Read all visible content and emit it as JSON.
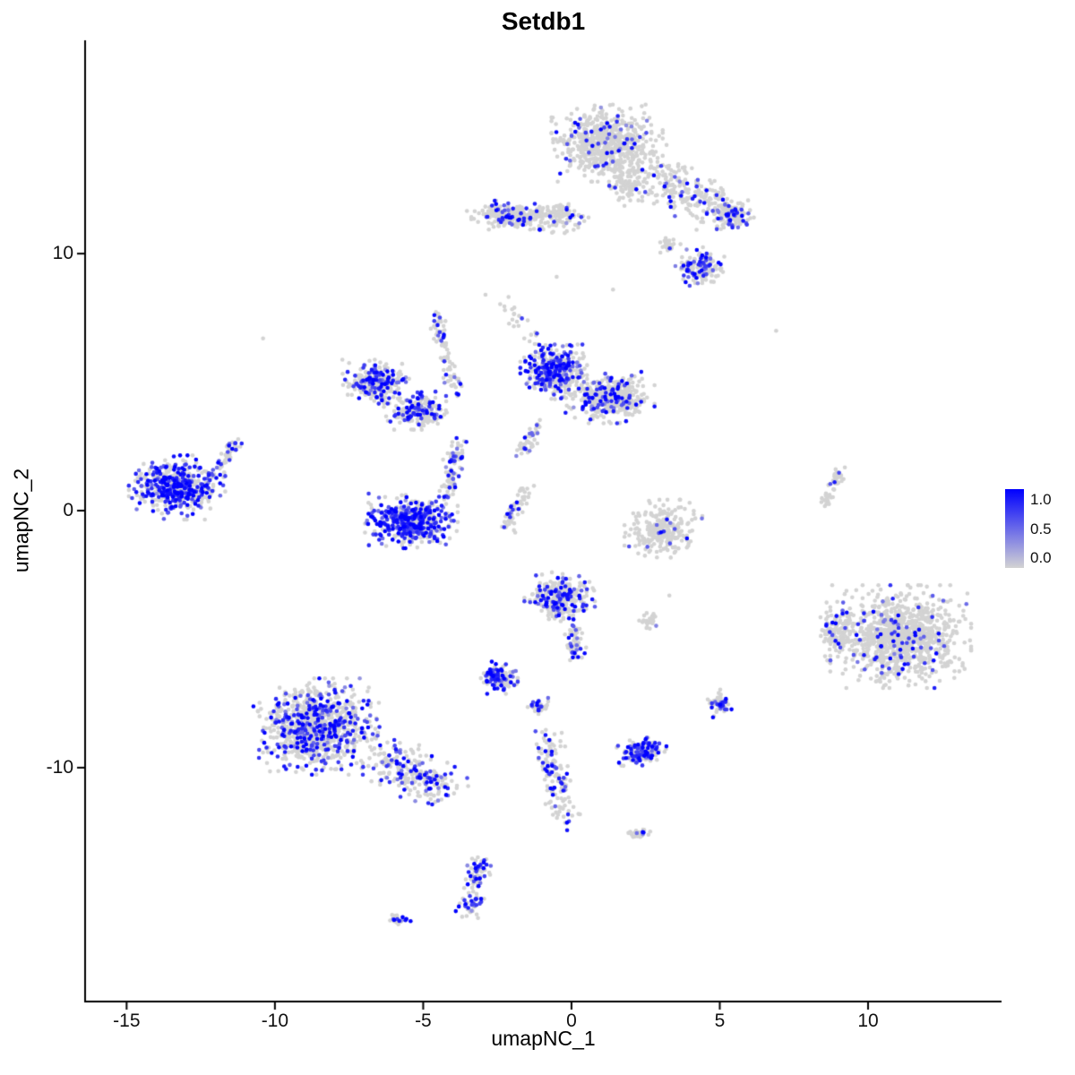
{
  "chart_data": {
    "type": "scatter",
    "title": "Setdb1",
    "xlabel": "umapNC_1",
    "ylabel": "umapNC_2",
    "xlim": [
      -16.4,
      14.5
    ],
    "ylim": [
      -19.1,
      18.3
    ],
    "x_ticks": [
      -15,
      -10,
      -5,
      0,
      5,
      10
    ],
    "y_ticks": [
      -10,
      0,
      10
    ],
    "grid": false,
    "background": "#ffffff",
    "axis_color": "#000000",
    "point_radius_px": 2.3,
    "color_low": "#D3D3D3",
    "color_high": "#0000FF",
    "legend": {
      "position": "right",
      "ticks": [
        "1.0",
        "0.5",
        "0.0"
      ],
      "tick_values": [
        1.0,
        0.5,
        0.0
      ]
    },
    "clusters": [
      {
        "name": "top-main",
        "shape": "blob",
        "cx": 1.2,
        "cy": 14.3,
        "rx": 1.5,
        "ry": 1.2,
        "n": 650,
        "expr": 0.1
      },
      {
        "name": "top-neck",
        "shape": "blob",
        "cx": 1.9,
        "cy": 12.7,
        "rx": 0.5,
        "ry": 0.7,
        "n": 80,
        "expr": 0.08
      },
      {
        "name": "top-tail",
        "shape": "line",
        "x1": 2.6,
        "y1": 13.2,
        "x2": 5.2,
        "y2": 11.7,
        "jitter": 0.45,
        "n": 240,
        "expr": 0.12
      },
      {
        "name": "top-right-knot",
        "shape": "blob",
        "cx": 5.4,
        "cy": 11.5,
        "rx": 0.6,
        "ry": 0.5,
        "n": 100,
        "expr": 0.3
      },
      {
        "name": "right-upper-small",
        "shape": "blob",
        "cx": 4.3,
        "cy": 9.5,
        "rx": 0.7,
        "ry": 0.6,
        "n": 140,
        "expr": 0.35
      },
      {
        "name": "mid-knot",
        "shape": "blob",
        "cx": 3.3,
        "cy": 10.3,
        "rx": 0.3,
        "ry": 0.3,
        "n": 30,
        "expr": 0.1
      },
      {
        "name": "upper-band",
        "shape": "blob",
        "cx": -1.9,
        "cy": 11.5,
        "rx": 1.3,
        "ry": 0.45,
        "n": 230,
        "expr": 0.12
      },
      {
        "name": "upper-band-east",
        "shape": "blob",
        "cx": -0.3,
        "cy": 11.4,
        "rx": 0.7,
        "ry": 0.5,
        "n": 90,
        "expr": 0.15
      },
      {
        "name": "center-north-left",
        "shape": "blob",
        "cx": -0.6,
        "cy": 5.4,
        "rx": 0.9,
        "ry": 0.85,
        "n": 420,
        "expr": 0.38
      },
      {
        "name": "center-north-right",
        "shape": "blob",
        "cx": 1.3,
        "cy": 4.4,
        "rx": 1.2,
        "ry": 0.8,
        "n": 430,
        "expr": 0.18
      },
      {
        "name": "center-north-trail",
        "shape": "line",
        "x1": -1.2,
        "y1": 6.4,
        "x2": -2.3,
        "y2": 8.2,
        "jitter": 0.15,
        "n": 25,
        "expr": 0.1
      },
      {
        "name": "left-arc-west",
        "shape": "blob",
        "cx": -6.6,
        "cy": 5.0,
        "rx": 0.9,
        "ry": 0.7,
        "n": 280,
        "expr": 0.3
      },
      {
        "name": "left-arc-east",
        "shape": "blob",
        "cx": -5.2,
        "cy": 3.9,
        "rx": 0.9,
        "ry": 0.6,
        "n": 220,
        "expr": 0.28
      },
      {
        "name": "left-arc-streak",
        "shape": "line",
        "x1": -4.6,
        "y1": 7.6,
        "x2": -3.9,
        "y2": 4.6,
        "jitter": 0.12,
        "n": 80,
        "expr": 0.2
      },
      {
        "name": "far-left",
        "shape": "blob",
        "cx": -13.3,
        "cy": 0.9,
        "rx": 1.3,
        "ry": 1.0,
        "n": 520,
        "expr": 0.5
      },
      {
        "name": "far-left-tail",
        "shape": "line",
        "x1": -11.9,
        "y1": 1.7,
        "x2": -11.3,
        "y2": 2.7,
        "jitter": 0.12,
        "n": 40,
        "expr": 0.25
      },
      {
        "name": "crescent",
        "shape": "blob",
        "cx": -5.4,
        "cy": -0.4,
        "rx": 1.25,
        "ry": 0.85,
        "n": 520,
        "expr": 0.55
      },
      {
        "name": "crescent-tail",
        "shape": "line",
        "x1": -4.2,
        "y1": 0.6,
        "x2": -3.8,
        "y2": 2.7,
        "jitter": 0.15,
        "n": 80,
        "expr": 0.3
      },
      {
        "name": "mini-streak-a",
        "shape": "line",
        "x1": -1.7,
        "y1": 2.2,
        "x2": -1.1,
        "y2": 3.5,
        "jitter": 0.12,
        "n": 45,
        "expr": 0.15
      },
      {
        "name": "mini-streak-b",
        "shape": "line",
        "x1": -2.2,
        "y1": -0.7,
        "x2": -1.5,
        "y2": 0.9,
        "jitter": 0.15,
        "n": 55,
        "expr": 0.3
      },
      {
        "name": "right-bowl",
        "shape": "blob",
        "cx": 3.1,
        "cy": -0.7,
        "rx": 1.05,
        "ry": 0.9,
        "n": 250,
        "expr": 0.05
      },
      {
        "name": "right-streak",
        "shape": "line",
        "x1": 8.5,
        "y1": 0.2,
        "x2": 9.1,
        "y2": 1.7,
        "jitter": 0.1,
        "n": 45,
        "expr": 0.05
      },
      {
        "name": "east-main",
        "shape": "blob",
        "cx": 11.1,
        "cy": -4.9,
        "rx": 1.9,
        "ry": 1.6,
        "n": 1000,
        "expr": 0.07
      },
      {
        "name": "east-west-lobe",
        "shape": "blob",
        "cx": 9.0,
        "cy": -4.7,
        "rx": 0.6,
        "ry": 0.9,
        "n": 130,
        "expr": 0.12
      },
      {
        "name": "center-south",
        "shape": "blob",
        "cx": -0.4,
        "cy": -3.4,
        "rx": 0.95,
        "ry": 0.8,
        "n": 300,
        "expr": 0.3
      },
      {
        "name": "center-south-tail",
        "shape": "line",
        "x1": 0.0,
        "y1": -4.4,
        "x2": 0.2,
        "y2": -5.7,
        "jitter": 0.15,
        "n": 55,
        "expr": 0.15
      },
      {
        "name": "tiny-east",
        "shape": "blob",
        "cx": 2.6,
        "cy": -4.3,
        "rx": 0.3,
        "ry": 0.25,
        "n": 25,
        "expr": 0.05
      },
      {
        "name": "small-mid-left",
        "shape": "blob",
        "cx": -2.5,
        "cy": -6.5,
        "rx": 0.55,
        "ry": 0.5,
        "n": 130,
        "expr": 0.4
      },
      {
        "name": "tiny-mid",
        "shape": "blob",
        "cx": -1.1,
        "cy": -7.6,
        "rx": 0.3,
        "ry": 0.25,
        "n": 35,
        "expr": 0.25
      },
      {
        "name": "southwest-main",
        "shape": "blob",
        "cx": -8.6,
        "cy": -8.4,
        "rx": 1.7,
        "ry": 1.5,
        "n": 850,
        "expr": 0.35
      },
      {
        "name": "southwest-tail",
        "shape": "line",
        "x1": -6.5,
        "y1": -9.5,
        "x2": -4.2,
        "y2": -10.9,
        "jitter": 0.4,
        "n": 230,
        "expr": 0.3
      },
      {
        "name": "south-streak",
        "shape": "line",
        "x1": -0.9,
        "y1": -8.7,
        "x2": -0.2,
        "y2": -12.0,
        "jitter": 0.22,
        "n": 140,
        "expr": 0.25
      },
      {
        "name": "south-small-east",
        "shape": "blob",
        "cx": 2.4,
        "cy": -9.4,
        "rx": 0.7,
        "ry": 0.45,
        "n": 150,
        "expr": 0.45
      },
      {
        "name": "small-east-2",
        "shape": "blob",
        "cx": 5.0,
        "cy": -7.5,
        "rx": 0.35,
        "ry": 0.45,
        "n": 55,
        "expr": 0.35
      },
      {
        "name": "tiny-south",
        "shape": "blob",
        "cx": 2.3,
        "cy": -12.6,
        "rx": 0.35,
        "ry": 0.2,
        "n": 30,
        "expr": 0.2
      },
      {
        "name": "south-vertical",
        "shape": "line",
        "x1": -3.1,
        "y1": -13.6,
        "x2": -3.5,
        "y2": -15.7,
        "jitter": 0.18,
        "n": 100,
        "expr": 0.5
      },
      {
        "name": "tiny-southwest",
        "shape": "blob",
        "cx": -5.8,
        "cy": -15.9,
        "rx": 0.3,
        "ry": 0.2,
        "n": 25,
        "expr": 0.3
      },
      {
        "name": "isolated",
        "shape": "points",
        "pts": [
          [
            6.9,
            7.0
          ],
          [
            -10.4,
            6.7
          ],
          [
            1.4,
            8.6
          ],
          [
            -2.9,
            8.4
          ],
          [
            3.3,
            -3.3
          ],
          [
            -0.5,
            9.1
          ]
        ],
        "expr": 0
      }
    ]
  }
}
